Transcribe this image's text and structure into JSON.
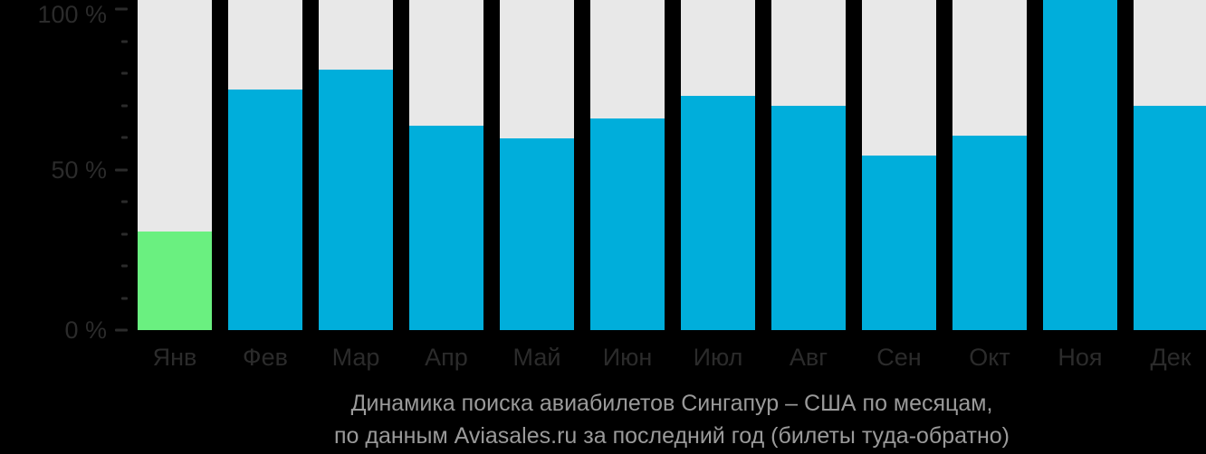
{
  "colors": {
    "background": "#000000",
    "track": "#E8E8E8",
    "bar": "#00AEDB",
    "highlight_bar": "#6AF080",
    "axis_text": "#2B2B2B",
    "caption_text": "#9A9A9A"
  },
  "chart_data": {
    "type": "bar",
    "title": "Динамика поиска авиабилетов Сингапур – США по месяцам, по данным Aviasales.ru за последний год (билеты туда-обратно)",
    "categories": [
      "Янв",
      "Фев",
      "Мар",
      "Апр",
      "Май",
      "Июн",
      "Июл",
      "Авг",
      "Сен",
      "Окт",
      "Ноя",
      "Дек"
    ],
    "values": [
      30,
      73,
      79,
      62,
      58,
      64,
      71,
      68,
      53,
      59,
      100,
      68
    ],
    "highlighted_index": 0,
    "xlabel": "",
    "ylabel": "",
    "ylim": [
      0,
      100
    ],
    "y_major_ticks": [
      0,
      50,
      100
    ],
    "y_major_tick_labels": [
      "0 %",
      "50 %",
      "100 %"
    ],
    "y_minor_tick_step": 10,
    "grid": false,
    "legend": "none",
    "bar_background_track": true
  },
  "caption": {
    "line1": "Динамика поиска авиабилетов Сингапур – США по месяцам,",
    "line2": "по данным Aviasales.ru за последний год (билеты туда-обратно)"
  }
}
